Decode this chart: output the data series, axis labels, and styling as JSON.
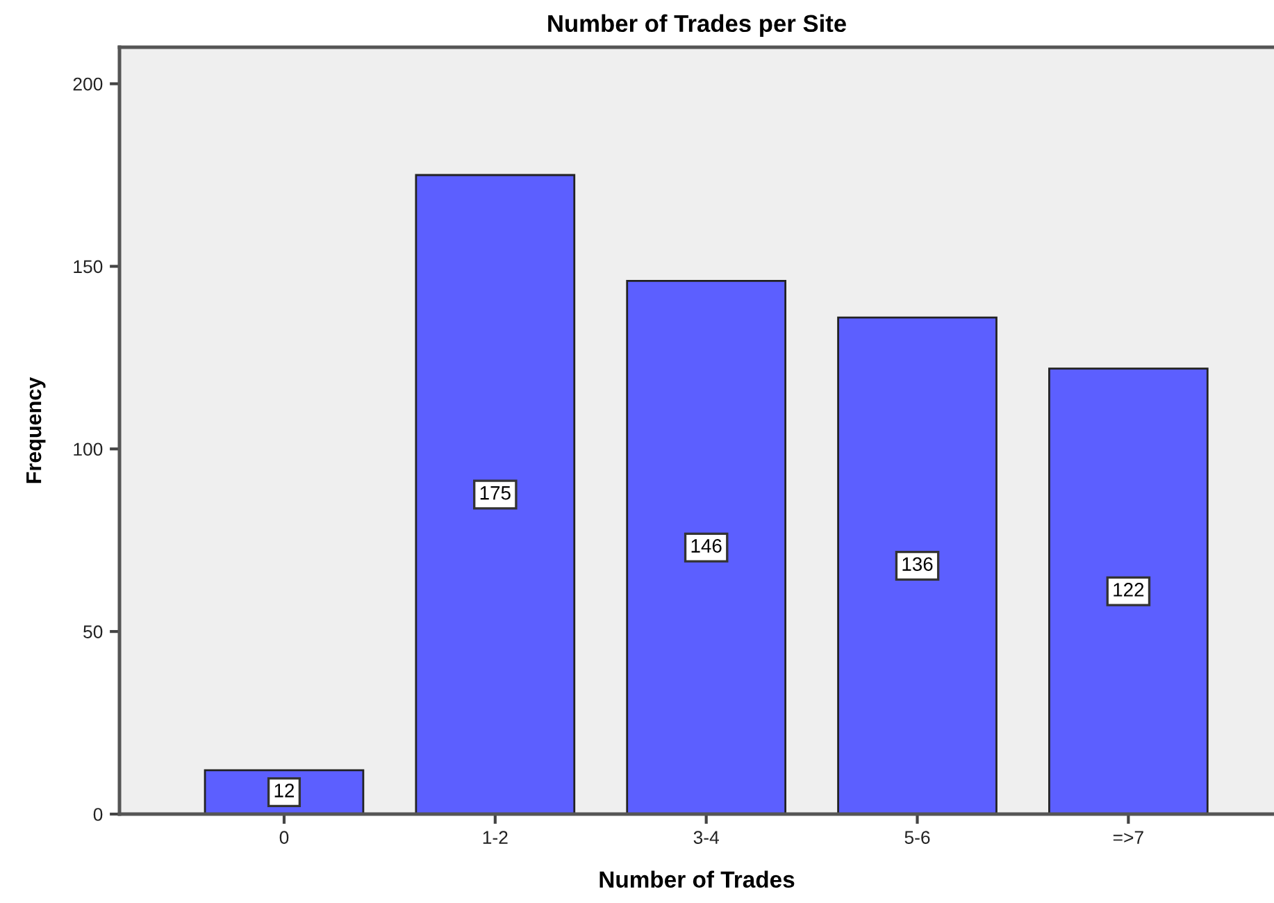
{
  "chart_data": {
    "type": "bar",
    "title": "Number of Trades per Site",
    "xlabel": "Number of Trades",
    "ylabel": "Frequency",
    "categories": [
      "0",
      "1-2",
      "3-4",
      "5-6",
      "=>7"
    ],
    "values": [
      12,
      175,
      146,
      136,
      122
    ],
    "color": "#5c5fff",
    "ylim": [
      0,
      210
    ],
    "yticks": [
      0,
      50,
      100,
      150,
      200
    ],
    "data_labels": true
  }
}
